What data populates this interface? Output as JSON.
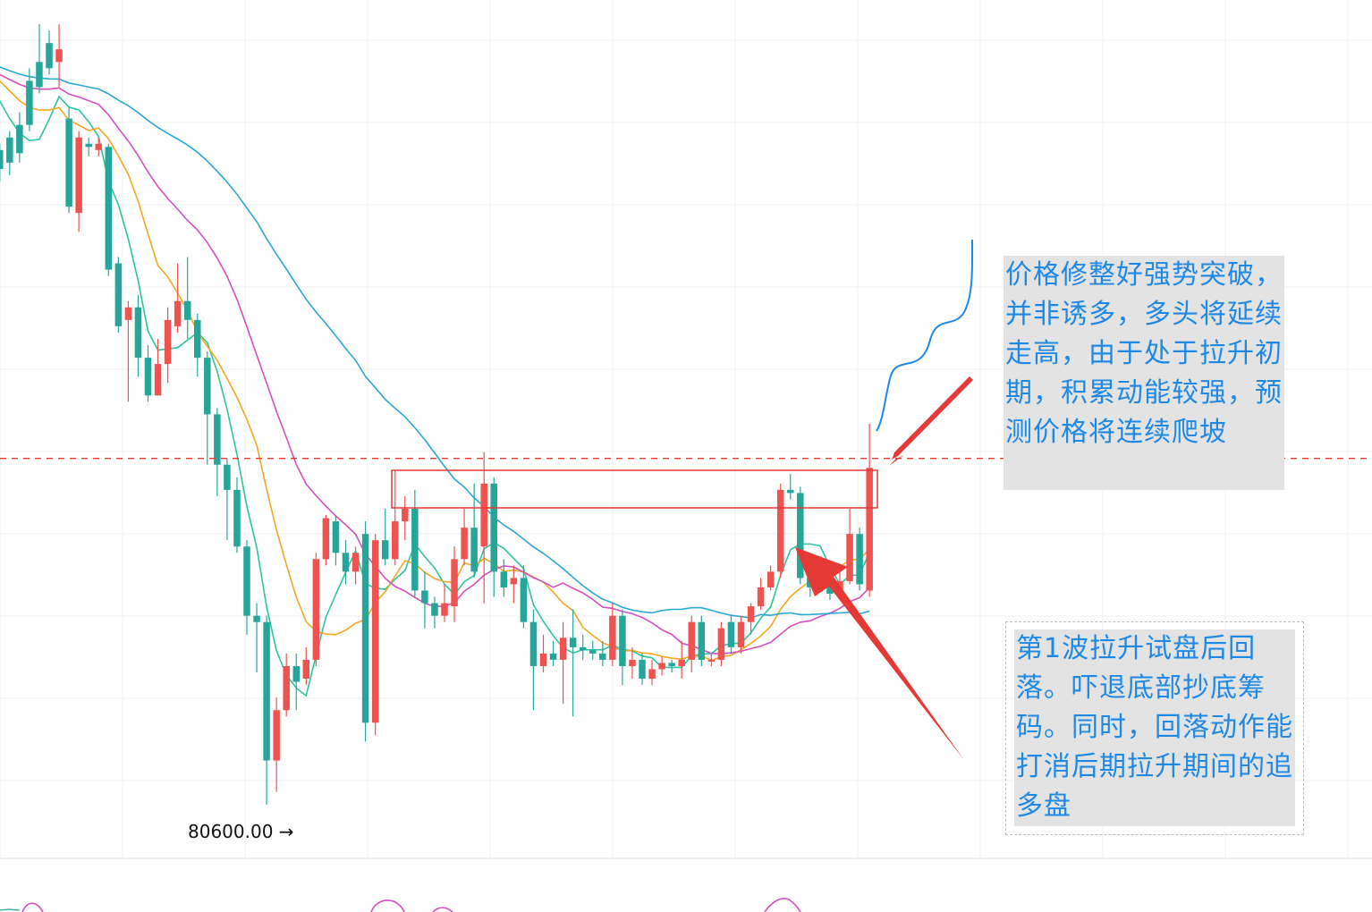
{
  "chart_data": {
    "type": "candlestick",
    "y_scale_anchor": {
      "price": 80600.0
    },
    "price_marker_label": "80600.00 →",
    "colors": {
      "up": "#ef5350",
      "down": "#26a69a",
      "ma_fast": "#2ec4a0",
      "ma_mid": "#f5a623",
      "ma_slow": "#d64fbf",
      "ma_long": "#2aa8d6",
      "price_line": "#e53935",
      "breakout_box": "#e53935",
      "forecast": "#1e88e5",
      "grid": "#f0f0f0",
      "annotation_text": "#1e88e5",
      "annotation_bg": "#e3e3e3"
    },
    "annotations": [
      {
        "id": "note-breakout",
        "text": "价格修整好强势突破，并非诱多，多头将延续走高，由于处于拉升初期，积累动能较强，预测价格将连续爬坡"
      },
      {
        "id": "note-pullback",
        "text": "第1波拉升试盘后回落。吓退底部抄底筹码。同时，回落动作能打消后期拉升期间的追多盘"
      }
    ],
    "candles": [
      {
        "o": 5.9,
        "c": 5.6,
        "h": 6.0,
        "l": 5.4
      },
      {
        "o": 6.1,
        "c": 5.7,
        "h": 6.2,
        "l": 5.5
      },
      {
        "o": 6.3,
        "c": 5.85,
        "h": 6.5,
        "l": 5.7
      },
      {
        "o": 7.0,
        "c": 6.3,
        "h": 7.2,
        "l": 6.2
      },
      {
        "o": 7.3,
        "c": 6.9,
        "h": 7.9,
        "l": 6.8
      },
      {
        "o": 7.6,
        "c": 7.2,
        "h": 7.8,
        "l": 7.1
      },
      {
        "o": 7.3,
        "c": 7.5,
        "h": 7.9,
        "l": 6.9
      },
      {
        "o": 6.4,
        "c": 5.0,
        "h": 6.6,
        "l": 4.9
      },
      {
        "o": 4.9,
        "c": 6.1,
        "h": 6.2,
        "l": 4.6
      },
      {
        "o": 6.0,
        "c": 5.95,
        "h": 6.1,
        "l": 5.8
      },
      {
        "o": 5.9,
        "c": 6.0,
        "h": 6.1,
        "l": 5.8
      },
      {
        "o": 5.95,
        "c": 4.0,
        "h": 6.0,
        "l": 3.9
      },
      {
        "o": 4.1,
        "c": 3.1,
        "h": 4.2,
        "l": 3.0
      },
      {
        "o": 3.2,
        "c": 3.4,
        "h": 3.5,
        "l": 1.9
      },
      {
        "o": 3.4,
        "c": 2.6,
        "h": 3.6,
        "l": 2.3
      },
      {
        "o": 2.6,
        "c": 2.0,
        "h": 2.8,
        "l": 1.9
      },
      {
        "o": 2.0,
        "c": 2.5,
        "h": 2.9,
        "l": 2.0
      },
      {
        "o": 2.5,
        "c": 3.2,
        "h": 3.4,
        "l": 2.2
      },
      {
        "o": 3.1,
        "c": 3.5,
        "h": 4.1,
        "l": 3.0
      },
      {
        "o": 3.5,
        "c": 3.2,
        "h": 4.2,
        "l": 2.9
      },
      {
        "o": 3.2,
        "c": 2.6,
        "h": 3.3,
        "l": 2.3
      },
      {
        "o": 2.6,
        "c": 1.7,
        "h": 2.7,
        "l": 0.9
      },
      {
        "o": 1.7,
        "c": 0.9,
        "h": 1.8,
        "l": 0.4
      },
      {
        "o": 0.9,
        "c": 0.5,
        "h": 1.0,
        "l": -0.3
      },
      {
        "o": 0.5,
        "c": -0.4,
        "h": 0.7,
        "l": -0.5
      },
      {
        "o": -0.4,
        "c": -1.5,
        "h": -0.3,
        "l": -1.8
      },
      {
        "o": -1.5,
        "c": -1.6,
        "h": -1.3,
        "l": -2.4
      },
      {
        "o": -1.6,
        "c": -3.8,
        "h": -1.5,
        "l": -4.5
      },
      {
        "o": -3.8,
        "c": -3.0,
        "h": -2.8,
        "l": -4.3
      },
      {
        "o": -3.0,
        "c": -2.3,
        "h": -2.1,
        "l": -3.1
      },
      {
        "o": -2.3,
        "c": -2.55,
        "h": -2.1,
        "l": -3.0
      },
      {
        "o": -2.5,
        "c": -2.2,
        "h": -2.0,
        "l": -2.6
      },
      {
        "o": -2.2,
        "c": -0.6,
        "h": -0.5,
        "l": -2.3
      },
      {
        "o": -0.6,
        "c": 0.05,
        "h": 0.1,
        "l": -0.7
      },
      {
        "o": 0.0,
        "c": -0.5,
        "h": 0.1,
        "l": -0.7
      },
      {
        "o": -0.5,
        "c": -0.8,
        "h": -0.3,
        "l": -1.0
      },
      {
        "o": -0.8,
        "c": -0.5,
        "h": -0.4,
        "l": -1.0
      },
      {
        "o": -0.2,
        "c": -3.2,
        "h": 0.0,
        "l": -3.5
      },
      {
        "o": -3.2,
        "c": -0.3,
        "h": -0.2,
        "l": -3.4
      },
      {
        "o": -0.3,
        "c": -0.6,
        "h": 0.2,
        "l": -0.7
      },
      {
        "o": -0.6,
        "c": 0.0,
        "h": 0.8,
        "l": -0.7
      },
      {
        "o": 0.0,
        "c": 0.2,
        "h": 0.4,
        "l": -0.3
      },
      {
        "o": 0.2,
        "c": -1.1,
        "h": 0.5,
        "l": -1.2
      },
      {
        "o": -1.1,
        "c": -1.3,
        "h": -0.8,
        "l": -1.7
      },
      {
        "o": -1.3,
        "c": -1.5,
        "h": -1.2,
        "l": -1.7
      },
      {
        "o": -1.5,
        "c": -1.3,
        "h": -1.0,
        "l": -1.6
      },
      {
        "o": -1.35,
        "c": -0.6,
        "h": -0.4,
        "l": -1.6
      },
      {
        "o": -0.6,
        "c": -0.1,
        "h": 0.2,
        "l": -0.7
      },
      {
        "o": -0.1,
        "c": -0.8,
        "h": 0.6,
        "l": -0.9
      },
      {
        "o": -0.4,
        "c": 0.6,
        "h": 1.1,
        "l": -1.3
      },
      {
        "o": 0.6,
        "c": -0.8,
        "h": 0.7,
        "l": -1.2
      },
      {
        "o": -0.8,
        "c": -1.05,
        "h": -0.6,
        "l": -1.2
      },
      {
        "o": -1.0,
        "c": -0.9,
        "h": -0.7,
        "l": -1.3
      },
      {
        "o": -0.9,
        "c": -1.6,
        "h": -0.7,
        "l": -1.7
      },
      {
        "o": -1.6,
        "c": -2.3,
        "h": -1.4,
        "l": -3.0
      },
      {
        "o": -2.3,
        "c": -2.1,
        "h": -1.8,
        "l": -2.4
      },
      {
        "o": -2.1,
        "c": -2.2,
        "h": -1.9,
        "l": -2.3
      },
      {
        "o": -2.2,
        "c": -1.85,
        "h": -1.6,
        "l": -2.9
      },
      {
        "o": -1.85,
        "c": -2.0,
        "h": -1.4,
        "l": -3.1
      },
      {
        "o": -2.0,
        "c": -2.05,
        "h": -1.8,
        "l": -2.2
      },
      {
        "o": -2.05,
        "c": -2.1,
        "h": -1.9,
        "l": -2.2
      },
      {
        "o": -2.1,
        "c": -2.2,
        "h": -1.9,
        "l": -2.3
      },
      {
        "o": -2.2,
        "c": -1.5,
        "h": -1.3,
        "l": -2.3
      },
      {
        "o": -1.5,
        "c": -2.3,
        "h": -1.4,
        "l": -2.6
      },
      {
        "o": -2.3,
        "c": -2.2,
        "h": -2.0,
        "l": -2.5
      },
      {
        "o": -2.2,
        "c": -2.5,
        "h": -2.1,
        "l": -2.6
      },
      {
        "o": -2.5,
        "c": -2.35,
        "h": -2.2,
        "l": -2.6
      },
      {
        "o": -2.35,
        "c": -2.25,
        "h": -2.15,
        "l": -2.45
      },
      {
        "o": -2.25,
        "c": -2.3,
        "h": -2.2,
        "l": -2.4
      },
      {
        "o": -2.3,
        "c": -2.2,
        "h": -1.9,
        "l": -2.5
      },
      {
        "o": -2.2,
        "c": -1.6,
        "h": -1.5,
        "l": -2.4
      },
      {
        "o": -1.6,
        "c": -2.2,
        "h": -1.5,
        "l": -2.3
      },
      {
        "o": -2.2,
        "c": -2.2,
        "h": -2.1,
        "l": -2.3
      },
      {
        "o": -2.2,
        "c": -1.7,
        "h": -1.6,
        "l": -2.3
      },
      {
        "o": -1.6,
        "c": -2.0,
        "h": -1.5,
        "l": -2.1
      },
      {
        "o": -2.0,
        "c": -1.6,
        "h": -1.5,
        "l": -2.1
      },
      {
        "o": -1.6,
        "c": -1.35,
        "h": -1.3,
        "l": -1.8
      },
      {
        "o": -1.35,
        "c": -1.05,
        "h": -0.9,
        "l": -1.4
      },
      {
        "o": -1.05,
        "c": -0.8,
        "h": -0.7,
        "l": -1.1
      },
      {
        "o": -0.8,
        "c": 0.5,
        "h": 0.6,
        "l": -0.9
      },
      {
        "o": 0.5,
        "c": 0.45,
        "h": 0.75,
        "l": 0.35
      },
      {
        "o": 0.45,
        "c": -0.9,
        "h": 0.55,
        "l": -1.0
      },
      {
        "o": -0.9,
        "c": -1.05,
        "h": -0.6,
        "l": -1.2
      },
      {
        "o": -1.05,
        "c": -0.95,
        "h": -0.7,
        "l": -1.1
      },
      {
        "o": -0.95,
        "c": -1.15,
        "h": -0.9,
        "l": -1.25
      },
      {
        "o": -1.15,
        "c": -0.95,
        "h": -0.8,
        "l": -1.2
      },
      {
        "o": -0.95,
        "c": -0.2,
        "h": 0.2,
        "l": -1.0
      },
      {
        "o": -0.2,
        "c": -1.0,
        "h": -0.1,
        "l": -1.1
      },
      {
        "o": -1.1,
        "c": 0.85,
        "h": 1.55,
        "l": -1.2
      }
    ],
    "current_price_y": 1.0,
    "ylim": [
      -5.0,
      8.0
    ]
  }
}
